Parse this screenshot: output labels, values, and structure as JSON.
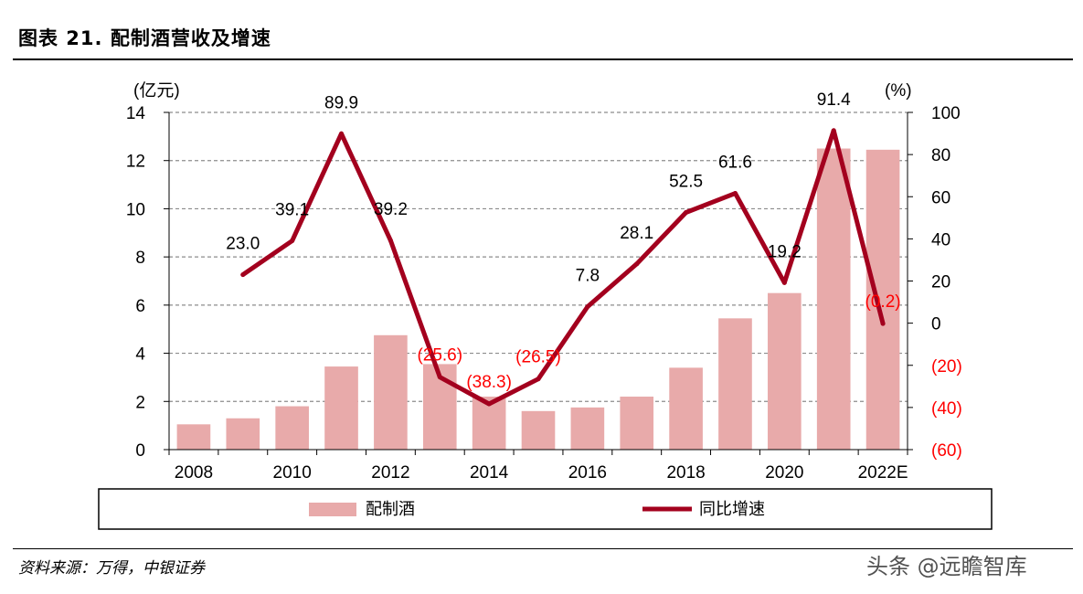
{
  "header": {
    "figure_title": "图表 21. 配制酒营收及增速"
  },
  "footer": {
    "source": "资料来源：万得，中银证券",
    "watermark": "头条 @远瞻智库"
  },
  "chart_data": {
    "type": "bar",
    "categories": [
      "2008",
      "2009",
      "2010",
      "2011",
      "2012",
      "2013",
      "2014",
      "2015",
      "2016",
      "2017",
      "2018",
      "2019",
      "2020",
      "2021",
      "2022E"
    ],
    "x_tick_labels": [
      "2008",
      "2010",
      "2012",
      "2014",
      "2016",
      "2018",
      "2020",
      "2022E"
    ],
    "series": [
      {
        "name": "配制酒",
        "type": "bar",
        "axis": "left",
        "color": "#e8aaaa",
        "values": [
          1.05,
          1.3,
          1.8,
          3.45,
          4.75,
          3.55,
          2.2,
          1.6,
          1.75,
          2.2,
          3.4,
          5.45,
          6.5,
          12.5,
          12.45
        ]
      },
      {
        "name": "同比增速",
        "type": "line",
        "axis": "right",
        "color": "#a3001e",
        "values": [
          null,
          23.0,
          39.1,
          89.9,
          39.2,
          -25.6,
          -38.3,
          -26.5,
          7.8,
          28.1,
          52.5,
          61.6,
          19.2,
          91.4,
          -0.2
        ],
        "labels": [
          "",
          "23.0",
          "39.1",
          "89.9",
          "39.2",
          "(25.6)",
          "(38.3)",
          "(26.5)",
          "7.8",
          "28.1",
          "52.5",
          "61.6",
          "19.2",
          "91.4",
          "(0.2)"
        ],
        "negative_label_color": "#ff0000"
      }
    ],
    "y_left": {
      "unit_label": "(亿元)",
      "range": [
        0,
        14
      ],
      "ticks": [
        0,
        2,
        4,
        6,
        8,
        10,
        12,
        14
      ],
      "tick_labels": [
        "0",
        "2",
        "4",
        "6",
        "8",
        "10",
        "12",
        "14"
      ]
    },
    "y_right": {
      "unit_label": "(%)",
      "range": [
        -60,
        100
      ],
      "ticks": [
        -60,
        -40,
        -20,
        0,
        20,
        40,
        60,
        80,
        100
      ],
      "tick_labels": [
        "(60)",
        "(40)",
        "(20)",
        "0",
        "20",
        "40",
        "60",
        "80",
        "100"
      ],
      "negative_tick_color": "#ff0000"
    },
    "grid": "horizontal dashed",
    "legend": {
      "position": "bottom",
      "boxed": true
    }
  }
}
